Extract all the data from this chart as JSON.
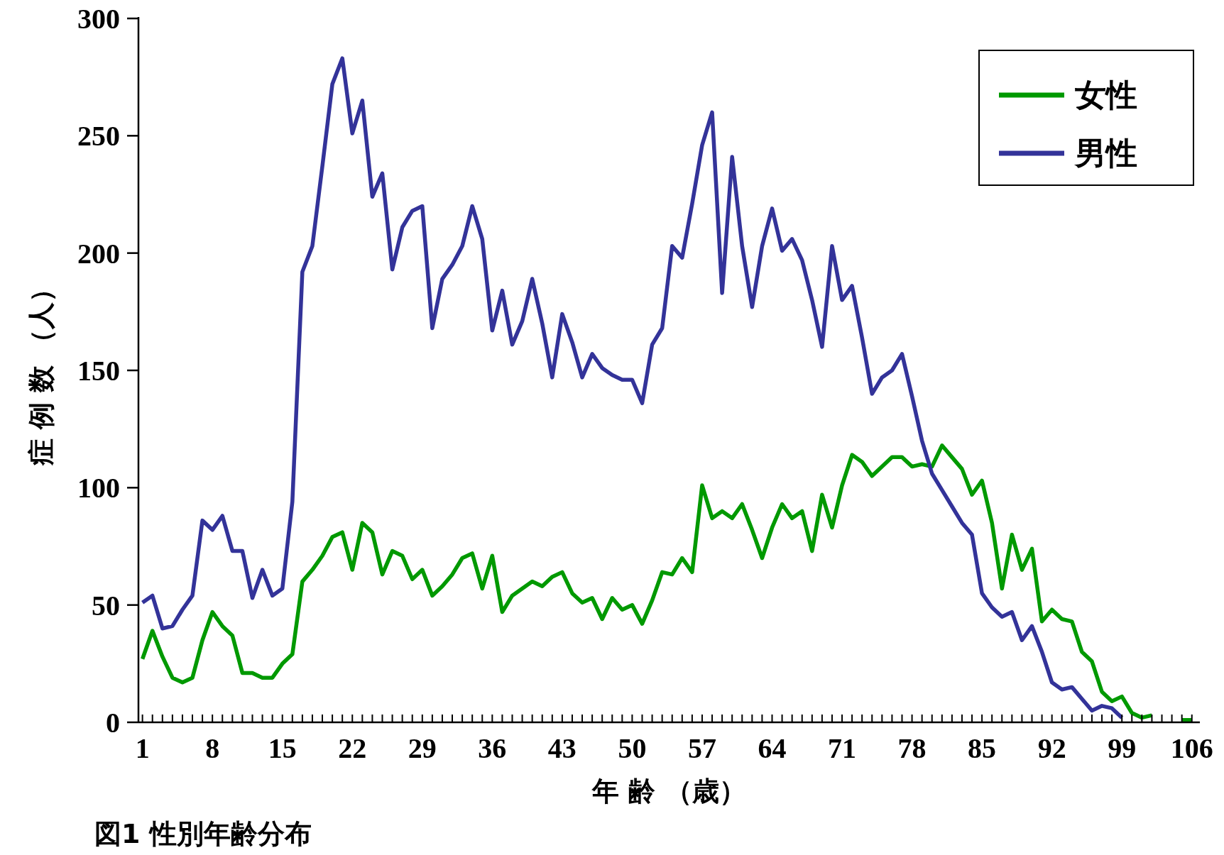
{
  "chart_data": {
    "type": "line",
    "title": "図1 性別年齢分布",
    "xlabel": "年 齢 （歳）",
    "ylabel": "症 例 数 （人）",
    "series": [
      {
        "name": "女性",
        "color": "#009900",
        "x": [
          1,
          2,
          3,
          4,
          5,
          6,
          7,
          8,
          9,
          10,
          11,
          12,
          13,
          14,
          15,
          16,
          17,
          18,
          19,
          20,
          21,
          22,
          23,
          24,
          25,
          26,
          27,
          28,
          29,
          30,
          31,
          32,
          33,
          34,
          35,
          36,
          37,
          38,
          39,
          40,
          41,
          42,
          43,
          44,
          45,
          46,
          47,
          48,
          49,
          50,
          51,
          52,
          53,
          54,
          55,
          56,
          57,
          58,
          59,
          60,
          61,
          62,
          63,
          64,
          65,
          66,
          67,
          68,
          69,
          70,
          71,
          72,
          73,
          74,
          75,
          76,
          77,
          78,
          79,
          80,
          81,
          82,
          83,
          84,
          85,
          86,
          87,
          88,
          89,
          90,
          91,
          92,
          93,
          94,
          95,
          96,
          97,
          98,
          99,
          100,
          101,
          102,
          105,
          106
        ],
        "values": [
          27,
          39,
          28,
          19,
          17,
          19,
          35,
          47,
          41,
          37,
          21,
          21,
          19,
          19,
          25,
          29,
          60,
          65,
          71,
          79,
          81,
          65,
          85,
          81,
          63,
          73,
          71,
          61,
          65,
          54,
          58,
          63,
          70,
          72,
          57,
          71,
          47,
          54,
          57,
          60,
          58,
          62,
          64,
          55,
          51,
          53,
          44,
          53,
          48,
          50,
          42,
          52,
          64,
          63,
          70,
          64,
          101,
          87,
          90,
          87,
          93,
          82,
          70,
          83,
          93,
          87,
          90,
          73,
          97,
          83,
          101,
          114,
          111,
          105,
          109,
          113,
          113,
          109,
          110,
          109,
          118,
          113,
          108,
          97,
          103,
          85,
          57,
          80,
          65,
          74,
          43,
          48,
          44,
          43,
          30,
          26,
          13,
          9,
          11,
          4,
          2,
          3,
          1,
          1
        ]
      },
      {
        "name": "男性",
        "color": "#333399",
        "x": [
          1,
          2,
          3,
          4,
          5,
          6,
          7,
          8,
          9,
          10,
          11,
          12,
          13,
          14,
          15,
          16,
          17,
          18,
          19,
          20,
          21,
          22,
          23,
          24,
          25,
          26,
          27,
          28,
          29,
          30,
          31,
          32,
          33,
          34,
          35,
          36,
          37,
          38,
          39,
          40,
          41,
          42,
          43,
          44,
          45,
          46,
          47,
          48,
          49,
          50,
          51,
          52,
          53,
          54,
          55,
          56,
          57,
          58,
          59,
          60,
          61,
          62,
          63,
          64,
          65,
          66,
          67,
          68,
          69,
          70,
          71,
          72,
          73,
          74,
          75,
          76,
          77,
          78,
          79,
          80,
          81,
          82,
          83,
          84,
          85,
          86,
          87,
          88,
          89,
          90,
          91,
          92,
          93,
          94,
          95,
          96,
          97,
          98,
          99
        ],
        "values": [
          51,
          54,
          40,
          41,
          48,
          54,
          86,
          82,
          88,
          73,
          73,
          53,
          65,
          54,
          57,
          94,
          192,
          203,
          237,
          272,
          283,
          251,
          265,
          224,
          234,
          193,
          211,
          218,
          220,
          168,
          189,
          195,
          203,
          220,
          206,
          167,
          184,
          161,
          171,
          189,
          170,
          147,
          174,
          162,
          147,
          157,
          151,
          148,
          146,
          146,
          136,
          161,
          168,
          203,
          198,
          221,
          246,
          260,
          183,
          241,
          203,
          177,
          203,
          219,
          201,
          206,
          197,
          180,
          160,
          203,
          180,
          186,
          164,
          140,
          147,
          150,
          157,
          139,
          120,
          106,
          99,
          92,
          85,
          80,
          55,
          49,
          45,
          47,
          35,
          41,
          30,
          17,
          14,
          15,
          10,
          5,
          7,
          6,
          2
        ]
      }
    ],
    "xlim": [
      0.6,
      106.8
    ],
    "xticks": [
      1,
      {
        "value": 2,
        "label": null
      },
      {
        "value": 3,
        "label": null
      },
      {
        "value": 4,
        "label": null
      },
      {
        "value": 5,
        "label": null
      },
      {
        "value": 6,
        "label": null
      },
      {
        "value": 7,
        "label": null
      },
      8,
      {
        "value": 9,
        "label": null
      },
      {
        "value": 10,
        "label": null
      },
      {
        "value": 11,
        "label": null
      },
      {
        "value": 12,
        "label": null
      },
      {
        "value": 13,
        "label": null
      },
      {
        "value": 14,
        "label": null
      },
      15,
      {
        "value": 16,
        "label": null
      },
      {
        "value": 17,
        "label": null
      },
      {
        "value": 18,
        "label": null
      },
      {
        "value": 19,
        "label": null
      },
      {
        "value": 20,
        "label": null
      },
      {
        "value": 21,
        "label": null
      },
      22,
      {
        "value": 23,
        "label": null
      },
      {
        "value": 24,
        "label": null
      },
      {
        "value": 25,
        "label": null
      },
      {
        "value": 26,
        "label": null
      },
      {
        "value": 27,
        "label": null
      },
      {
        "value": 28,
        "label": null
      },
      29,
      {
        "value": 30,
        "label": null
      },
      {
        "value": 31,
        "label": null
      },
      {
        "value": 32,
        "label": null
      },
      {
        "value": 33,
        "label": null
      },
      {
        "value": 34,
        "label": null
      },
      {
        "value": 35,
        "label": null
      },
      36,
      {
        "value": 37,
        "label": null
      },
      {
        "value": 38,
        "label": null
      },
      {
        "value": 39,
        "label": null
      },
      {
        "value": 40,
        "label": null
      },
      {
        "value": 41,
        "label": null
      },
      {
        "value": 42,
        "label": null
      },
      43,
      {
        "value": 44,
        "label": null
      },
      {
        "value": 45,
        "label": null
      },
      {
        "value": 46,
        "label": null
      },
      {
        "value": 47,
        "label": null
      },
      {
        "value": 48,
        "label": null
      },
      {
        "value": 49,
        "label": null
      },
      50,
      {
        "value": 51,
        "label": null
      },
      {
        "value": 52,
        "label": null
      },
      {
        "value": 53,
        "label": null
      },
      {
        "value": 54,
        "label": null
      },
      {
        "value": 55,
        "label": null
      },
      {
        "value": 56,
        "label": null
      },
      57,
      {
        "value": 58,
        "label": null
      },
      {
        "value": 59,
        "label": null
      },
      {
        "value": 60,
        "label": null
      },
      {
        "value": 61,
        "label": null
      },
      {
        "value": 62,
        "label": null
      },
      {
        "value": 63,
        "label": null
      },
      64,
      {
        "value": 65,
        "label": null
      },
      {
        "value": 66,
        "label": null
      },
      {
        "value": 67,
        "label": null
      },
      {
        "value": 68,
        "label": null
      },
      {
        "value": 69,
        "label": null
      },
      {
        "value": 70,
        "label": null
      },
      71,
      {
        "value": 72,
        "label": null
      },
      {
        "value": 73,
        "label": null
      },
      {
        "value": 74,
        "label": null
      },
      {
        "value": 75,
        "label": null
      },
      {
        "value": 76,
        "label": null
      },
      {
        "value": 77,
        "label": null
      },
      78,
      {
        "value": 79,
        "label": null
      },
      {
        "value": 80,
        "label": null
      },
      {
        "value": 81,
        "label": null
      },
      {
        "value": 82,
        "label": null
      },
      {
        "value": 83,
        "label": null
      },
      {
        "value": 84,
        "label": null
      },
      85,
      {
        "value": 86,
        "label": null
      },
      {
        "value": 87,
        "label": null
      },
      {
        "value": 88,
        "label": null
      },
      {
        "value": 89,
        "label": null
      },
      {
        "value": 90,
        "label": null
      },
      {
        "value": 91,
        "label": null
      },
      92,
      {
        "value": 93,
        "label": null
      },
      {
        "value": 94,
        "label": null
      },
      {
        "value": 95,
        "label": null
      },
      {
        "value": 96,
        "label": null
      },
      {
        "value": 97,
        "label": null
      },
      {
        "value": 98,
        "label": null
      },
      99,
      {
        "value": 100,
        "label": null
      },
      {
        "value": 101,
        "label": null
      },
      {
        "value": 102,
        "label": null
      },
      {
        "value": 103,
        "label": null
      },
      {
        "value": 104,
        "label": null
      },
      {
        "value": 105,
        "label": null
      },
      106
    ],
    "ylim": [
      0,
      300
    ],
    "yticks": [
      0,
      50,
      100,
      150,
      200,
      250,
      300
    ],
    "grid": false,
    "legend": "top right",
    "line_style": "solid",
    "marker": "none"
  }
}
